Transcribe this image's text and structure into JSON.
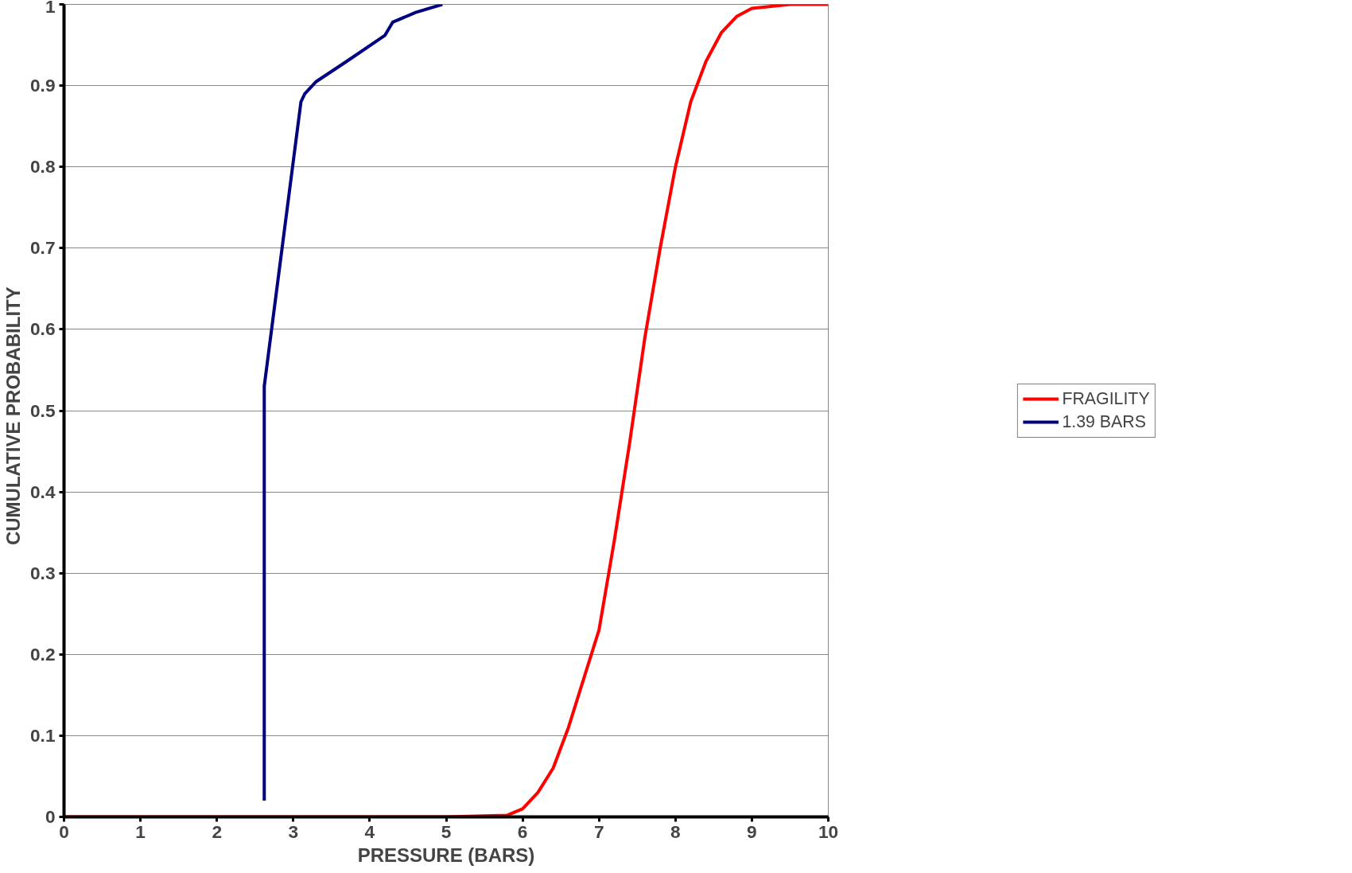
{
  "chart_data": {
    "type": "line",
    "xlabel": "PRESSURE (BARS)",
    "ylabel": "CUMULATIVE   PROBABILITY",
    "xlim": [
      0,
      10
    ],
    "ylim": [
      0,
      1
    ],
    "xticks": [
      0,
      1,
      2,
      3,
      4,
      5,
      6,
      7,
      8,
      9,
      10
    ],
    "yticks": [
      0,
      0.1,
      0.2,
      0.3,
      0.4,
      0.5,
      0.6,
      0.7,
      0.8,
      0.9,
      1
    ],
    "grid": "y",
    "legend": "right",
    "marker": "none",
    "line_style": "solid",
    "series": [
      {
        "name": "FRAGILITY",
        "color": "#ff0000",
        "x": [
          0,
          5,
          5.8,
          6,
          6.2,
          6.4,
          6.6,
          6.8,
          7,
          7.2,
          7.4,
          7.6,
          7.8,
          8,
          8.2,
          8.4,
          8.6,
          8.8,
          9,
          9.5,
          10
        ],
        "values": [
          0,
          0,
          0.002,
          0.01,
          0.03,
          0.06,
          0.11,
          0.17,
          0.23,
          0.34,
          0.46,
          0.59,
          0.7,
          0.8,
          0.88,
          0.93,
          0.965,
          0.985,
          0.995,
          1,
          1
        ]
      },
      {
        "name": "1.39 BARS",
        "color": "#000080",
        "x": [
          2.62,
          2.62,
          3.1,
          3.15,
          3.3,
          3.7,
          4.2,
          4.3,
          4.6,
          4.95
        ],
        "values": [
          0.02,
          0.53,
          0.88,
          0.89,
          0.905,
          0.93,
          0.962,
          0.978,
          0.99,
          1.0
        ]
      }
    ]
  }
}
